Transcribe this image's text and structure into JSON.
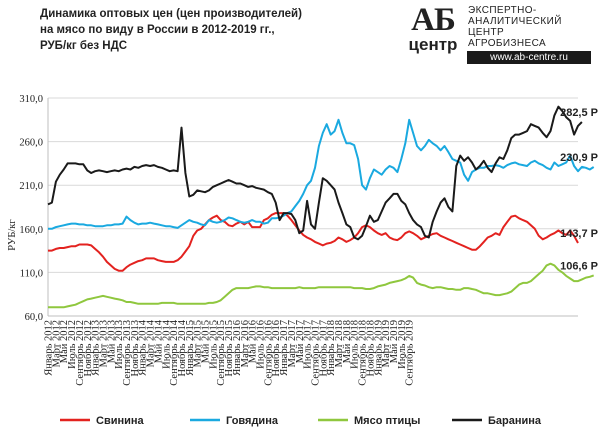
{
  "title": {
    "line1": "Динамика оптовых цен (цен производителей)",
    "line2": "на мясо по виду в России в 2012-2019 гг.,",
    "line3": "РУБ/кг без НДС"
  },
  "logo": {
    "mark_top": "АБ",
    "mark_bottom": "центр",
    "line1": "ЭКСПЕРТНО-",
    "line2": "АНАЛИТИЧЕСКИЙ",
    "line3": "ЦЕНТР",
    "line4": "АГРОБИЗНЕСА",
    "url": "www.ab-centre.ru"
  },
  "chart_data": {
    "type": "line",
    "ylabel": "РУБ/кг",
    "ylim": [
      60,
      310
    ],
    "yticks": [
      60,
      110,
      160,
      210,
      260,
      310
    ],
    "ytick_labels": [
      "60,0",
      "110,0",
      "160,0",
      "210,0",
      "260,0",
      "310,0"
    ],
    "x_start": "2012-01",
    "x_end": "2019-10",
    "xtick_labels": [
      "Январь 2012",
      "Март 2012",
      "Май 2012",
      "Июль 2012",
      "Сентябрь 2012",
      "Ноябрь 2012",
      "Январь 2013",
      "Март 2013",
      "Май 2013",
      "Июль 2013",
      "Сентябрь 2013",
      "Ноябрь 2013",
      "Январь 2014",
      "Март 2014",
      "Май 2014",
      "Июль 2014",
      "Сентябрь 2014",
      "Ноябрь 2014",
      "Январь 2015",
      "Март 2015",
      "Май 2015",
      "Июль 2015",
      "Сентябрь 2015",
      "Ноябрь 2015",
      "Январь 2016",
      "Март 2016",
      "Май 2016",
      "Июль 2016",
      "Сентябрь 2016",
      "Ноябрь 2016",
      "Январь 2017",
      "Март 2017",
      "Май 2017",
      "Июль 2017",
      "Сентябрь 2017",
      "Ноябрь 2017",
      "Январь 2018",
      "Март 2018",
      "Май 2018",
      "Июль 2018",
      "Сентябрь 2018",
      "Ноябрь 2018",
      "Январь 2019",
      "Март 2019",
      "Май 2019",
      "Июль 2019",
      "Сентябрь 2019"
    ],
    "legend_position": "bottom",
    "series": [
      {
        "name": "Свинина",
        "color": "#e3221f",
        "end_label": "143,7 Р",
        "values": [
          135,
          135,
          137,
          138,
          138,
          139,
          140,
          140,
          142,
          142,
          142,
          141,
          137,
          133,
          128,
          122,
          118,
          114,
          112,
          112,
          116,
          119,
          121,
          123,
          124,
          126,
          126,
          126,
          124,
          123,
          122,
          122,
          122,
          124,
          128,
          134,
          140,
          152,
          158,
          160,
          165,
          170,
          173,
          175,
          170,
          168,
          164,
          163,
          166,
          168,
          165,
          168,
          162,
          162,
          162,
          170,
          172,
          176,
          178,
          178,
          178,
          175,
          170,
          164,
          158,
          153,
          150,
          148,
          145,
          143,
          141,
          143,
          144,
          146,
          150,
          148,
          145,
          147,
          150,
          155,
          162,
          164,
          162,
          158,
          155,
          153,
          155,
          150,
          148,
          147,
          150,
          155,
          157,
          155,
          152,
          148,
          150,
          152,
          154,
          155,
          152,
          150,
          148,
          146,
          144,
          142,
          140,
          138,
          136,
          136,
          140,
          145,
          150,
          152,
          155,
          153,
          162,
          168,
          174,
          175,
          172,
          170,
          168,
          164,
          160,
          152,
          148,
          150,
          153,
          155,
          158,
          155,
          153,
          158,
          152,
          143.7
        ]
      },
      {
        "name": "Говядина",
        "color": "#1aa9e0",
        "end_label": "230,9 Р",
        "values": [
          160,
          160,
          162,
          163,
          164,
          165,
          166,
          166,
          165,
          165,
          164,
          164,
          163,
          163,
          163,
          164,
          164,
          165,
          165,
          166,
          174,
          170,
          167,
          165,
          166,
          166,
          167,
          166,
          165,
          164,
          163,
          163,
          162,
          161,
          164,
          167,
          170,
          168,
          167,
          165,
          164,
          170,
          168,
          167,
          168,
          170,
          173,
          172,
          170,
          168,
          167,
          168,
          170,
          168,
          168,
          166,
          167,
          172,
          172,
          173,
          175,
          178,
          180,
          186,
          192,
          200,
          210,
          215,
          230,
          255,
          270,
          280,
          268,
          272,
          285,
          270,
          258,
          258,
          256,
          240,
          210,
          205,
          218,
          228,
          225,
          222,
          228,
          232,
          230,
          225,
          240,
          258,
          285,
          270,
          255,
          250,
          255,
          262,
          258,
          255,
          250,
          255,
          248,
          240,
          238,
          236,
          222,
          215,
          225,
          228,
          230,
          230,
          232,
          232,
          233,
          232,
          230,
          233,
          235,
          236,
          234,
          233,
          232,
          236,
          238,
          235,
          233,
          230,
          228,
          236,
          232,
          234,
          236,
          244,
          232,
          226,
          231,
          230,
          228,
          230.9
        ]
      },
      {
        "name": "Мясо птицы",
        "color": "#8fc73e",
        "end_label": "106,6 Р",
        "values": [
          70,
          70,
          70,
          70,
          70,
          71,
          72,
          73,
          75,
          77,
          79,
          80,
          81,
          82,
          83,
          82,
          81,
          80,
          79,
          78,
          76,
          76,
          75,
          74,
          74,
          74,
          74,
          74,
          74,
          75,
          75,
          75,
          75,
          74,
          74,
          74,
          74,
          74,
          74,
          74,
          74,
          75,
          75,
          76,
          78,
          82,
          86,
          90,
          92,
          92,
          92,
          92,
          93,
          94,
          94,
          93,
          93,
          92,
          92,
          92,
          92,
          92,
          92,
          92,
          93,
          92,
          92,
          92,
          92,
          93,
          93,
          93,
          93,
          93,
          93,
          93,
          93,
          93,
          92,
          92,
          92,
          91,
          91,
          92,
          94,
          95,
          96,
          98,
          99,
          100,
          101,
          103,
          106,
          104,
          98,
          96,
          95,
          93,
          92,
          93,
          93,
          92,
          91,
          91,
          90,
          90,
          92,
          92,
          91,
          90,
          88,
          86,
          86,
          85,
          84,
          84,
          85,
          86,
          88,
          92,
          96,
          98,
          98,
          100,
          104,
          108,
          112,
          118,
          120,
          118,
          113,
          110,
          106,
          103,
          100,
          100,
          102,
          104,
          105,
          106.6
        ]
      },
      {
        "name": "Баранина",
        "color": "#1a1a1a",
        "end_label": "282,5 Р",
        "values": [
          188,
          190,
          214,
          222,
          228,
          235,
          235,
          235,
          234,
          234,
          227,
          224,
          226,
          227,
          226,
          225,
          226,
          227,
          226,
          228,
          229,
          228,
          231,
          230,
          232,
          233,
          232,
          233,
          231,
          230,
          228,
          226,
          227,
          226,
          276,
          224,
          197,
          199,
          204,
          203,
          202,
          204,
          208,
          210,
          212,
          214,
          216,
          214,
          212,
          212,
          210,
          208,
          209,
          207,
          206,
          205,
          202,
          200,
          190,
          170,
          178,
          178,
          177,
          170,
          155,
          158,
          192,
          165,
          160,
          190,
          218,
          215,
          210,
          205,
          190,
          178,
          165,
          162,
          150,
          148,
          152,
          163,
          175,
          168,
          170,
          180,
          190,
          195,
          200,
          200,
          192,
          188,
          178,
          170,
          165,
          162,
          152,
          150,
          168,
          180,
          190,
          195,
          185,
          180,
          232,
          244,
          238,
          242,
          236,
          228,
          232,
          238,
          230,
          225,
          235,
          242,
          240,
          250,
          264,
          268,
          268,
          270,
          272,
          280,
          278,
          276,
          270,
          265,
          272,
          290,
          300,
          295,
          288,
          284,
          268,
          278,
          282.5
        ]
      }
    ]
  }
}
